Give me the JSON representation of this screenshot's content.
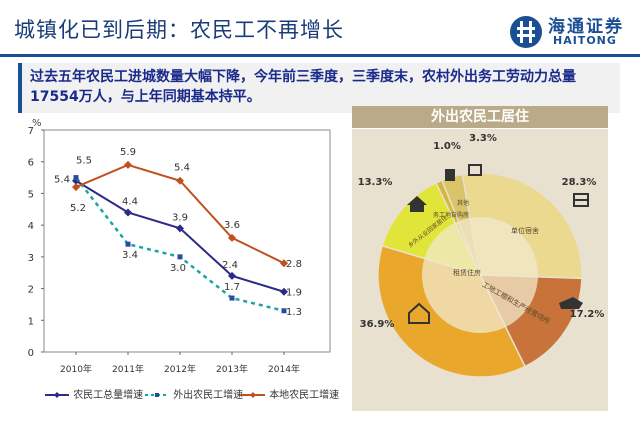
{
  "header": {
    "title": "城镇化已到后期：农民工不再增长",
    "logo_name": "海通证券",
    "logo_en": "HAITONG"
  },
  "summary": {
    "text": "过去五年农民工进城数量大幅下降，今年前三季度，三季度末，农村外出务工劳动力总量17554万人，与上年同期基本持平。"
  },
  "colors": {
    "brand": "#1a4f96",
    "total": "#2d2a8a",
    "migrant": "#1aa6a0",
    "local": "#c0501e"
  },
  "chart_data": [
    {
      "type": "line",
      "title": "",
      "ylabel": "%",
      "xlabel": "",
      "ylim": [
        0,
        7
      ],
      "yticks": [
        "0",
        "1",
        "2",
        "3",
        "4",
        "5",
        "6",
        "7"
      ],
      "categories": [
        "2010年",
        "2011年",
        "2012年",
        "2013年",
        "2014年"
      ],
      "series": [
        {
          "name": "农民工总量增速",
          "values": [
            5.4,
            4.4,
            3.9,
            2.4,
            1.9
          ],
          "labels": [
            "5.4",
            "4.4",
            "3.9",
            "2.4",
            "1.9"
          ]
        },
        {
          "name": "外出农民工增速",
          "values": [
            5.5,
            3.4,
            3.0,
            1.7,
            1.3
          ],
          "labels": [
            "5.5",
            "3.4",
            "3.0",
            "1.7",
            "1.3"
          ]
        },
        {
          "name": "本地农民工增速",
          "values": [
            5.2,
            5.9,
            5.4,
            3.6,
            2.8
          ],
          "labels": [
            "5.2",
            "5.9",
            "5.4",
            "3.6",
            "2.8"
          ]
        }
      ]
    },
    {
      "type": "pie",
      "title": "外出农民工居住",
      "slices": [
        {
          "label": "单位宿舍",
          "value": 28.3,
          "text": "28.3%"
        },
        {
          "label": "工地工棚和生产经营场所",
          "value": 17.2,
          "text": "17.2%"
        },
        {
          "label": "租赁住房",
          "value": 36.9,
          "text": "36.9%"
        },
        {
          "label": "乡外从业回家居住",
          "value": 13.3,
          "text": "13.3%"
        },
        {
          "label": "务工地自购房",
          "value": 1.0,
          "text": "1.0%"
        },
        {
          "label": "其他",
          "value": 3.3,
          "text": "3.3%"
        }
      ]
    }
  ]
}
